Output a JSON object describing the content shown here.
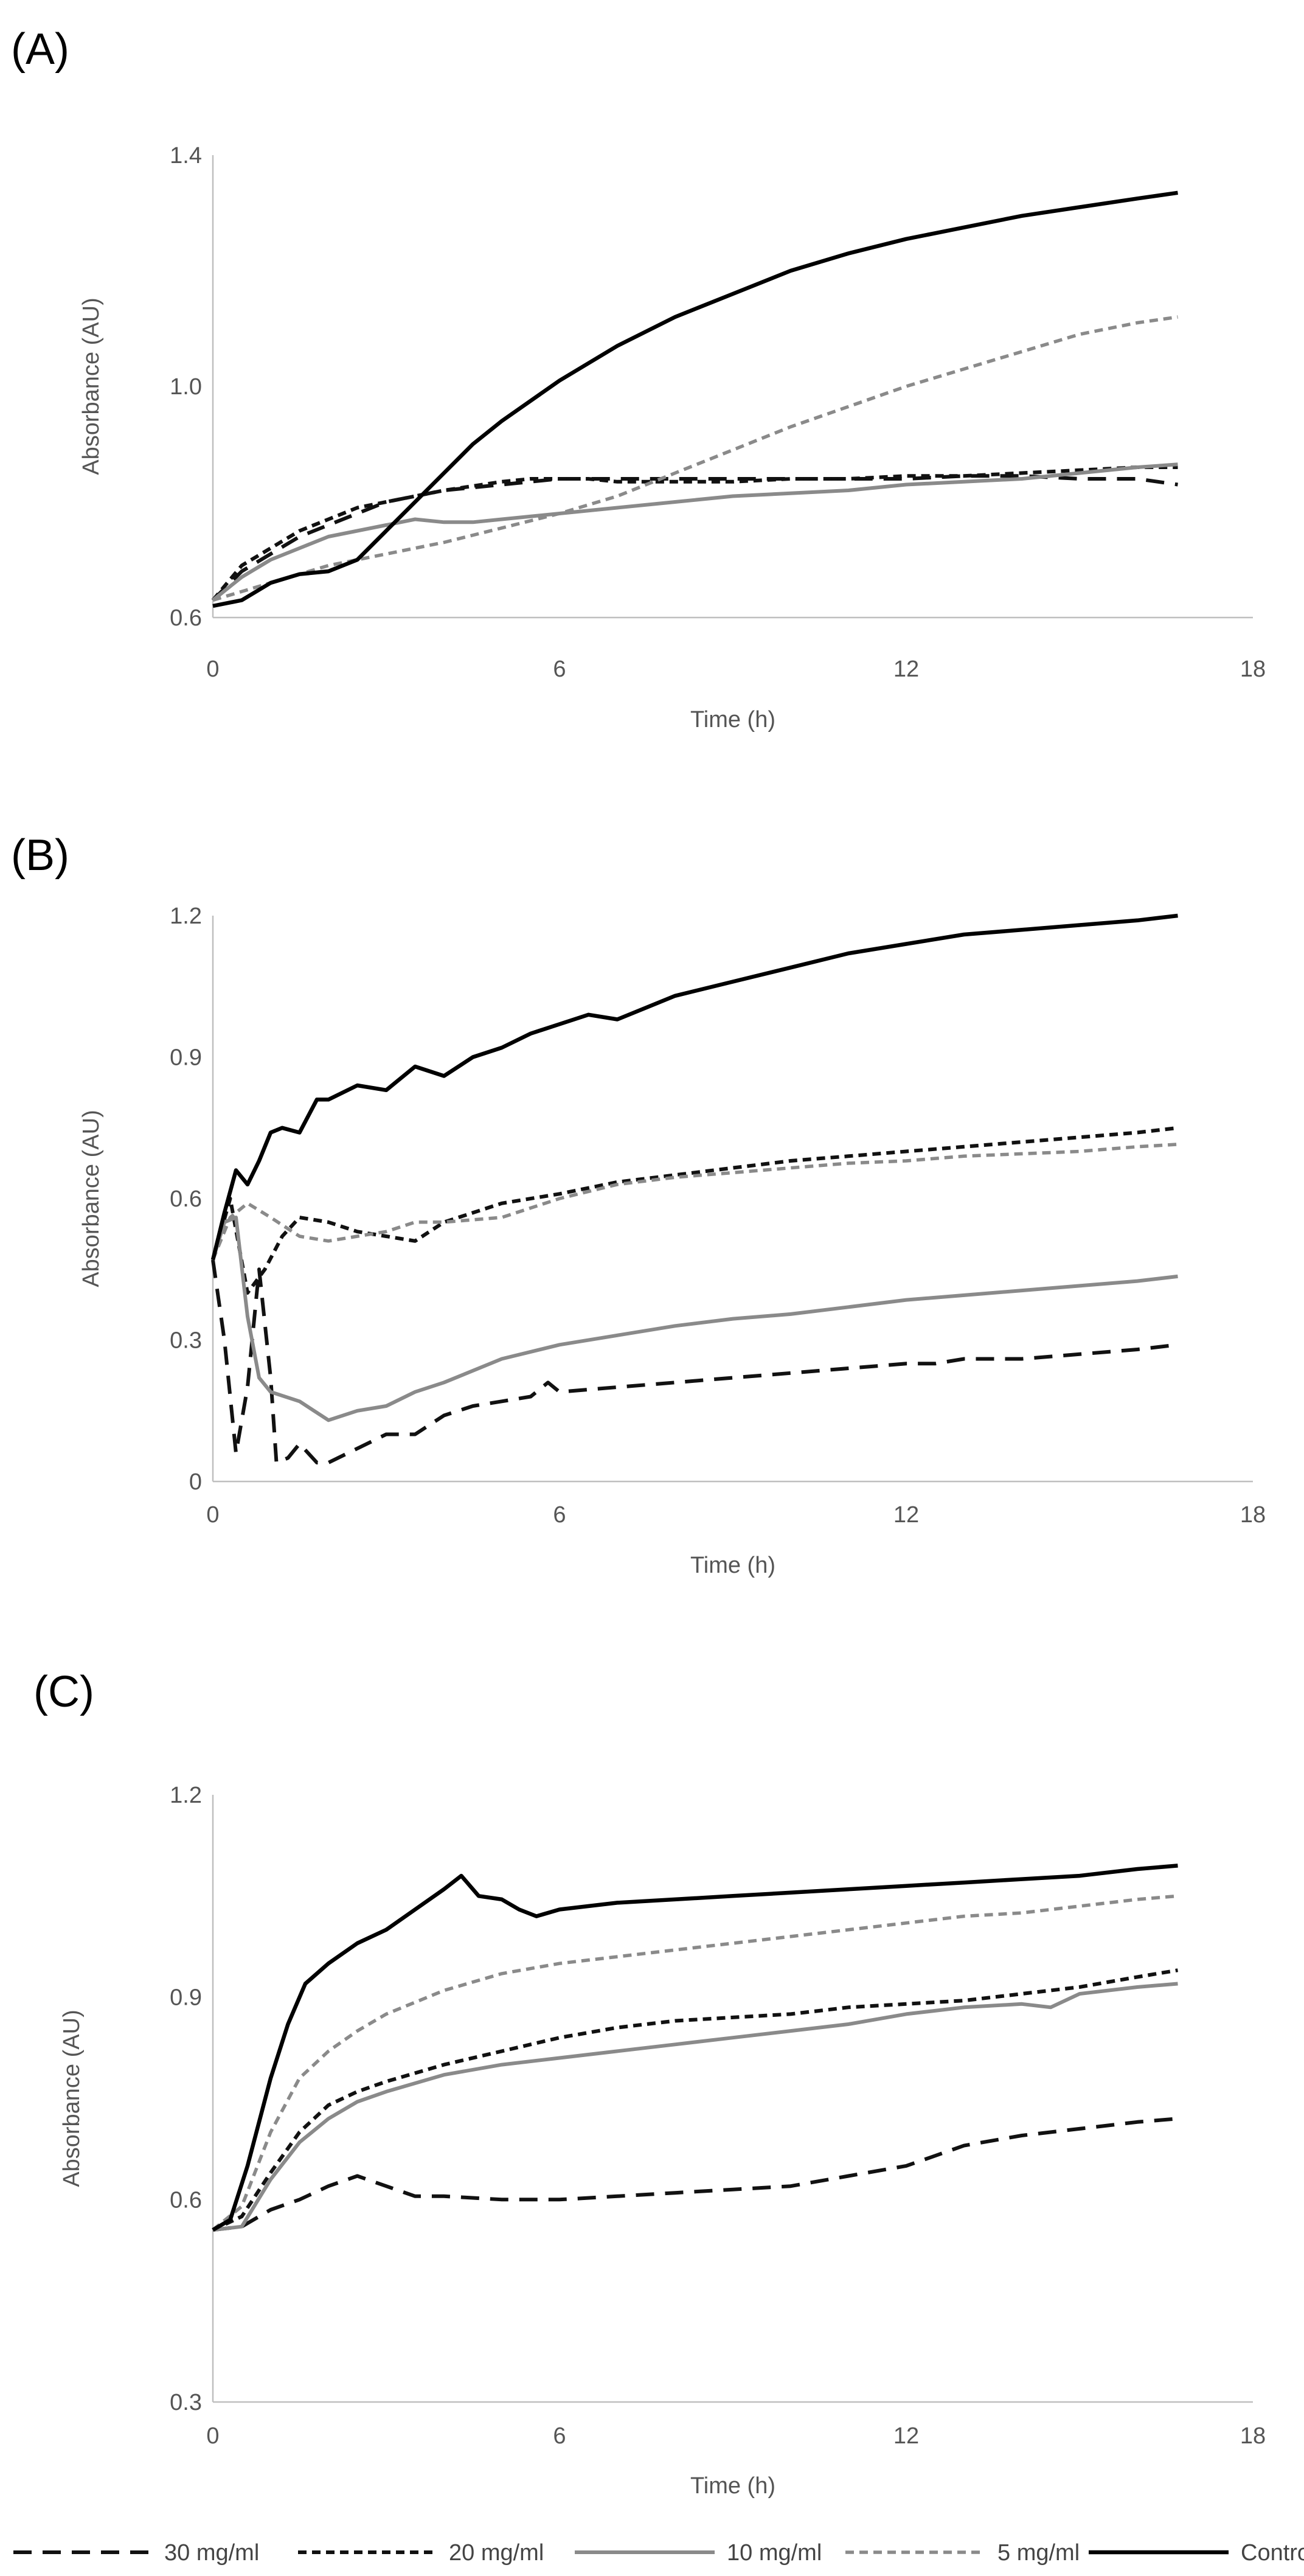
{
  "chart_data": [
    {
      "panel": "(A)",
      "type": "line",
      "xlabel": "Time (h)",
      "ylabel": "Absorbance (AU)",
      "xlim": [
        0,
        18
      ],
      "ylim": [
        0.6,
        1.4
      ],
      "xticks": [
        0,
        6,
        12,
        18
      ],
      "yticks": [
        0.6,
        1.0,
        1.4
      ],
      "ytick_labels": [
        "0.6",
        "1.0",
        "1.4"
      ],
      "series": [
        {
          "name": "30 mg/ml",
          "x": [
            0,
            0.5,
            1,
            1.5,
            2,
            2.5,
            3,
            3.5,
            4,
            5,
            6,
            7,
            8,
            9,
            10,
            11,
            12,
            13,
            14,
            15,
            16,
            16.7
          ],
          "y": [
            0.63,
            0.68,
            0.71,
            0.74,
            0.76,
            0.78,
            0.8,
            0.81,
            0.82,
            0.83,
            0.84,
            0.84,
            0.84,
            0.84,
            0.84,
            0.84,
            0.84,
            0.845,
            0.845,
            0.84,
            0.84,
            0.83
          ]
        },
        {
          "name": "20 mg/ml",
          "x": [
            0,
            0.5,
            1,
            1.5,
            2,
            2.5,
            3,
            3.5,
            4,
            5,
            5.5,
            6,
            6.5,
            7,
            8,
            9,
            10,
            11,
            12,
            13,
            14,
            15,
            16,
            16.7
          ],
          "y": [
            0.63,
            0.69,
            0.72,
            0.75,
            0.77,
            0.79,
            0.8,
            0.81,
            0.82,
            0.835,
            0.84,
            0.84,
            0.84,
            0.835,
            0.835,
            0.835,
            0.84,
            0.84,
            0.845,
            0.845,
            0.85,
            0.855,
            0.86,
            0.86
          ]
        },
        {
          "name": "10 mg/ml",
          "x": [
            0,
            0.5,
            1,
            1.5,
            2,
            2.5,
            3,
            3.5,
            4,
            4.5,
            5,
            6,
            7,
            8,
            9,
            10,
            11,
            12,
            13,
            14,
            15,
            16,
            16.7
          ],
          "y": [
            0.63,
            0.67,
            0.7,
            0.72,
            0.74,
            0.75,
            0.76,
            0.77,
            0.765,
            0.765,
            0.77,
            0.78,
            0.79,
            0.8,
            0.81,
            0.815,
            0.82,
            0.83,
            0.835,
            0.84,
            0.85,
            0.86,
            0.865
          ]
        },
        {
          "name": "5 mg/ml",
          "x": [
            0,
            1,
            2,
            3,
            4,
            5,
            6,
            7,
            8,
            9,
            10,
            11,
            12,
            13,
            14,
            15,
            16,
            16.7
          ],
          "y": [
            0.63,
            0.66,
            0.69,
            0.71,
            0.73,
            0.755,
            0.78,
            0.81,
            0.85,
            0.89,
            0.93,
            0.965,
            1.0,
            1.03,
            1.06,
            1.09,
            1.11,
            1.12
          ]
        },
        {
          "name": "Control",
          "x": [
            0,
            0.5,
            1,
            1.5,
            2,
            2.5,
            3,
            3.5,
            4,
            4.5,
            5,
            6,
            7,
            8,
            9,
            10,
            11,
            12,
            13,
            14,
            15,
            16,
            16.7
          ],
          "y": [
            0.62,
            0.63,
            0.66,
            0.675,
            0.68,
            0.7,
            0.75,
            0.8,
            0.85,
            0.9,
            0.94,
            1.01,
            1.07,
            1.12,
            1.16,
            1.2,
            1.23,
            1.255,
            1.275,
            1.295,
            1.31,
            1.325,
            1.335
          ]
        }
      ]
    },
    {
      "panel": "(B)",
      "type": "line",
      "xlabel": "Time (h)",
      "ylabel": "Absorbance (AU)",
      "xlim": [
        0,
        18
      ],
      "ylim": [
        0,
        1.2
      ],
      "xticks": [
        0,
        6,
        12,
        18
      ],
      "yticks": [
        0,
        0.3,
        0.6,
        0.9,
        1.2
      ],
      "ytick_labels": [
        "0",
        "0.3",
        "0.6",
        "0.9",
        "1.2"
      ],
      "series": [
        {
          "name": "30 mg/ml",
          "x": [
            0,
            0.2,
            0.4,
            0.6,
            0.8,
            1.0,
            1.1,
            1.3,
            1.5,
            1.8,
            2.0,
            2.5,
            3,
            3.5,
            4,
            4.5,
            5,
            5.5,
            5.8,
            6,
            7,
            8,
            9,
            10,
            11,
            12,
            12.5,
            13,
            14,
            15,
            16,
            16.7
          ],
          "y": [
            0.47,
            0.3,
            0.06,
            0.2,
            0.45,
            0.22,
            0.04,
            0.05,
            0.08,
            0.04,
            0.04,
            0.07,
            0.1,
            0.1,
            0.14,
            0.16,
            0.17,
            0.18,
            0.21,
            0.19,
            0.2,
            0.21,
            0.22,
            0.23,
            0.24,
            0.25,
            0.25,
            0.26,
            0.26,
            0.27,
            0.28,
            0.29
          ]
        },
        {
          "name": "20 mg/ml",
          "x": [
            0,
            0.3,
            0.6,
            0.9,
            1.2,
            1.5,
            2,
            2.5,
            3,
            3.5,
            4,
            5,
            6,
            7,
            8,
            9,
            10,
            11,
            12,
            13,
            14,
            15,
            16,
            16.7
          ],
          "y": [
            0.47,
            0.6,
            0.4,
            0.45,
            0.52,
            0.56,
            0.55,
            0.53,
            0.52,
            0.51,
            0.55,
            0.59,
            0.61,
            0.635,
            0.65,
            0.665,
            0.68,
            0.69,
            0.7,
            0.71,
            0.72,
            0.73,
            0.74,
            0.75
          ]
        },
        {
          "name": "10 mg/ml",
          "x": [
            0,
            0.2,
            0.4,
            0.6,
            0.8,
            1.0,
            1.5,
            2,
            2.5,
            3,
            3.5,
            4,
            5,
            6,
            7,
            8,
            9,
            10,
            11,
            12,
            13,
            14,
            15,
            16,
            16.7
          ],
          "y": [
            0.47,
            0.55,
            0.56,
            0.35,
            0.22,
            0.19,
            0.17,
            0.13,
            0.15,
            0.16,
            0.19,
            0.21,
            0.26,
            0.29,
            0.31,
            0.33,
            0.345,
            0.355,
            0.37,
            0.385,
            0.395,
            0.405,
            0.415,
            0.425,
            0.435
          ]
        },
        {
          "name": "5 mg/ml",
          "x": [
            0,
            0.3,
            0.6,
            1,
            1.5,
            2,
            2.5,
            3,
            3.5,
            4,
            5,
            6,
            7,
            8,
            9,
            10,
            11,
            12,
            13,
            14,
            15,
            16,
            16.7
          ],
          "y": [
            0.47,
            0.56,
            0.59,
            0.56,
            0.52,
            0.51,
            0.52,
            0.53,
            0.55,
            0.55,
            0.56,
            0.6,
            0.63,
            0.645,
            0.655,
            0.665,
            0.675,
            0.68,
            0.69,
            0.695,
            0.7,
            0.71,
            0.715
          ]
        },
        {
          "name": "Control",
          "x": [
            0,
            0.2,
            0.4,
            0.6,
            0.8,
            1.0,
            1.2,
            1.5,
            1.8,
            2,
            2.5,
            3,
            3.5,
            4,
            4.5,
            5,
            5.5,
            6,
            6.5,
            7,
            8,
            9,
            10,
            11,
            12,
            13,
            14,
            15,
            16,
            16.7
          ],
          "y": [
            0.47,
            0.57,
            0.66,
            0.63,
            0.68,
            0.74,
            0.75,
            0.74,
            0.81,
            0.81,
            0.84,
            0.83,
            0.88,
            0.86,
            0.9,
            0.92,
            0.95,
            0.97,
            0.99,
            0.98,
            1.03,
            1.06,
            1.09,
            1.12,
            1.14,
            1.16,
            1.17,
            1.18,
            1.19,
            1.2
          ]
        }
      ]
    },
    {
      "panel": "(C)",
      "type": "line",
      "xlabel": "Time (h)",
      "ylabel": "Absorbance (AU)",
      "xlim": [
        0,
        18
      ],
      "ylim": [
        0.3,
        1.2
      ],
      "xticks": [
        0,
        6,
        12,
        18
      ],
      "yticks": [
        0.3,
        0.6,
        0.9,
        1.2
      ],
      "ytick_labels": [
        "0.3",
        "0.6",
        "0.9",
        "1.2"
      ],
      "series": [
        {
          "name": "30 mg/ml",
          "x": [
            0,
            0.5,
            1,
            1.5,
            2,
            2.5,
            3,
            3.5,
            4,
            5,
            6,
            7,
            8,
            9,
            10,
            11,
            12,
            12.5,
            13,
            14,
            15,
            16,
            16.7
          ],
          "y": [
            0.555,
            0.56,
            0.585,
            0.6,
            0.62,
            0.635,
            0.62,
            0.605,
            0.605,
            0.6,
            0.6,
            0.605,
            0.61,
            0.615,
            0.62,
            0.635,
            0.65,
            0.665,
            0.68,
            0.695,
            0.705,
            0.715,
            0.72
          ]
        },
        {
          "name": "20 mg/ml",
          "x": [
            0,
            0.5,
            1,
            1.5,
            2,
            2.5,
            3,
            4,
            5,
            6,
            7,
            8,
            9,
            10,
            11,
            12,
            13,
            14,
            15,
            16,
            16.7
          ],
          "y": [
            0.555,
            0.575,
            0.64,
            0.7,
            0.74,
            0.76,
            0.775,
            0.8,
            0.82,
            0.84,
            0.855,
            0.865,
            0.87,
            0.875,
            0.885,
            0.89,
            0.895,
            0.905,
            0.915,
            0.93,
            0.94
          ]
        },
        {
          "name": "10 mg/ml",
          "x": [
            0,
            0.5,
            1,
            1.5,
            2,
            2.5,
            3,
            4,
            5,
            6,
            7,
            8,
            9,
            10,
            11,
            12,
            13,
            14,
            14.5,
            15,
            16,
            16.7
          ],
          "y": [
            0.555,
            0.56,
            0.63,
            0.685,
            0.72,
            0.745,
            0.76,
            0.785,
            0.8,
            0.81,
            0.82,
            0.83,
            0.84,
            0.85,
            0.86,
            0.875,
            0.885,
            0.89,
            0.885,
            0.905,
            0.915,
            0.92
          ]
        },
        {
          "name": "5 mg/ml",
          "x": [
            0,
            0.5,
            1,
            1.5,
            2,
            2.5,
            3,
            4,
            5,
            6,
            7,
            8,
            9,
            10,
            11,
            12,
            13,
            14,
            15,
            16,
            16.7
          ],
          "y": [
            0.555,
            0.59,
            0.7,
            0.78,
            0.82,
            0.85,
            0.875,
            0.91,
            0.935,
            0.95,
            0.96,
            0.97,
            0.98,
            0.99,
            1.0,
            1.01,
            1.02,
            1.025,
            1.035,
            1.045,
            1.05
          ]
        },
        {
          "name": "Control",
          "x": [
            0,
            0.3,
            0.6,
            1.0,
            1.3,
            1.6,
            2,
            2.5,
            3,
            3.5,
            4,
            4.3,
            4.6,
            5,
            5.3,
            5.6,
            6,
            7,
            8,
            9,
            10,
            11,
            12,
            13,
            14,
            15,
            16,
            16.7
          ],
          "y": [
            0.555,
            0.57,
            0.65,
            0.78,
            0.86,
            0.92,
            0.95,
            0.98,
            1.0,
            1.03,
            1.06,
            1.08,
            1.05,
            1.045,
            1.03,
            1.02,
            1.03,
            1.04,
            1.045,
            1.05,
            1.055,
            1.06,
            1.065,
            1.07,
            1.075,
            1.08,
            1.09,
            1.095
          ]
        }
      ]
    }
  ],
  "legend": [
    {
      "label": "30 mg/ml",
      "color": "#111111",
      "style": "long-dash"
    },
    {
      "label": "20 mg/ml",
      "color": "#111111",
      "style": "short-dash"
    },
    {
      "label": "10 mg/ml",
      "color": "#8a8a8a",
      "style": "solid"
    },
    {
      "label": "5 mg/ml",
      "color": "#8a8a8a",
      "style": "short-dash"
    },
    {
      "label": "Control",
      "color": "#000000",
      "style": "solid"
    }
  ]
}
